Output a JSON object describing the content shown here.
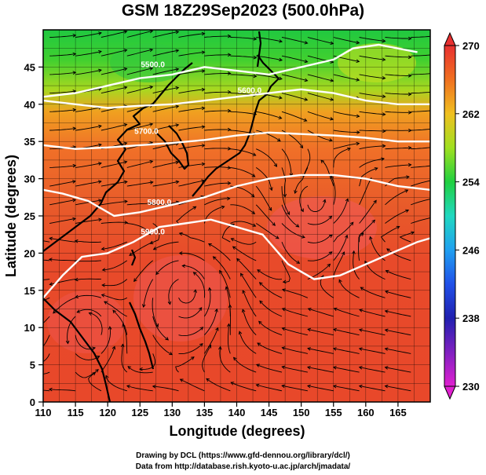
{
  "title": "GSM 18Z29Sep2023 (500.0hPa)",
  "credits": {
    "line1": "Drawing by DCL (https://www.gfd-dennou.org/library/dcl/)",
    "line2": "Data from http://database.rish.kyoto-u.ac.jp/arch/jmadata/"
  },
  "map": {
    "xlabel": "Longitude (degrees)",
    "ylabel": "Latitude  (degrees)",
    "lon_range": [
      110,
      170
    ],
    "lat_range": [
      0,
      50
    ],
    "lon_ticks": [
      "110",
      "115",
      "120",
      "125",
      "130",
      "135",
      "140",
      "145",
      "150",
      "155",
      "160",
      "165"
    ],
    "lat_ticks": [
      "0",
      "5",
      "10",
      "15",
      "20",
      "25",
      "30",
      "35",
      "40",
      "45"
    ],
    "contours": [
      {
        "label": "5500.0",
        "points": [
          [
            110,
            41
          ],
          [
            115,
            41.5
          ],
          [
            120,
            42.5
          ],
          [
            125,
            43.5
          ],
          [
            130,
            44
          ],
          [
            135,
            45
          ],
          [
            140,
            44.5
          ],
          [
            145,
            44
          ],
          [
            150,
            45
          ],
          [
            155,
            46
          ],
          [
            158,
            47.5
          ],
          [
            162,
            48
          ],
          [
            165,
            47.5
          ],
          [
            168,
            47
          ]
        ]
      },
      {
        "label": "5600.0",
        "points": [
          [
            110,
            40.5
          ],
          [
            115,
            40
          ],
          [
            120,
            39.5
          ],
          [
            125,
            39.8
          ],
          [
            130,
            40
          ],
          [
            135,
            40.5
          ],
          [
            140,
            41
          ],
          [
            145,
            41.5
          ],
          [
            150,
            42
          ],
          [
            155,
            41.5
          ],
          [
            160,
            40.5
          ],
          [
            165,
            40
          ],
          [
            170,
            40
          ]
        ]
      },
      {
        "label": "5700.0",
        "points": [
          [
            110,
            34.5
          ],
          [
            115,
            34
          ],
          [
            120,
            34.2
          ],
          [
            125,
            34.5
          ],
          [
            130,
            34.8
          ],
          [
            135,
            35.2
          ],
          [
            140,
            35.8
          ],
          [
            145,
            36.2
          ],
          [
            150,
            36
          ],
          [
            155,
            35.8
          ],
          [
            160,
            35.5
          ],
          [
            165,
            35
          ],
          [
            170,
            35
          ]
        ]
      },
      {
        "label": "5800.0",
        "points": [
          [
            110,
            28.5
          ],
          [
            113,
            28
          ],
          [
            117,
            27
          ],
          [
            121,
            25
          ],
          [
            125,
            25.5
          ],
          [
            130,
            26.5
          ],
          [
            135,
            27.5
          ],
          [
            140,
            29
          ],
          [
            145,
            30
          ],
          [
            150,
            30.5
          ],
          [
            155,
            30.5
          ],
          [
            160,
            30
          ],
          [
            165,
            29
          ],
          [
            170,
            28.5
          ]
        ]
      },
      {
        "label": "5900.0",
        "points": [
          [
            110,
            14
          ],
          [
            113,
            17
          ],
          [
            116,
            19.5
          ],
          [
            120,
            20
          ],
          [
            124,
            21.5
          ],
          [
            128,
            23.5
          ],
          [
            132,
            24
          ],
          [
            136,
            24.5
          ],
          [
            140,
            23.5
          ],
          [
            144,
            22.5
          ],
          [
            148,
            18.5
          ],
          [
            152,
            16.5
          ],
          [
            156,
            17
          ],
          [
            160,
            18.5
          ],
          [
            164,
            20
          ],
          [
            168,
            21.5
          ],
          [
            170,
            22
          ]
        ]
      }
    ],
    "contour_labels": [
      {
        "text": "5500.0",
        "lon": 127,
        "lat": 45
      },
      {
        "text": "5600.0",
        "lon": 142,
        "lat": 41.5
      },
      {
        "text": "5700.0",
        "lon": 126,
        "lat": 36
      },
      {
        "text": "5800.0",
        "lon": 128,
        "lat": 26.5
      },
      {
        "text": "5900.0",
        "lon": 127,
        "lat": 22.5
      }
    ]
  },
  "colorbar": {
    "ticks": [
      "230",
      "238",
      "246",
      "254",
      "262",
      "270"
    ],
    "tick_values": [
      230,
      238,
      246,
      254,
      262,
      270
    ],
    "range": [
      230,
      270
    ],
    "stops": [
      {
        "v": 230,
        "c": "#e020d0"
      },
      {
        "v": 234,
        "c": "#8020c0"
      },
      {
        "v": 238,
        "c": "#2020b0"
      },
      {
        "v": 242,
        "c": "#2050e8"
      },
      {
        "v": 246,
        "c": "#20a0f0"
      },
      {
        "v": 250,
        "c": "#20d8c0"
      },
      {
        "v": 254,
        "c": "#20d040"
      },
      {
        "v": 258,
        "c": "#a0e020"
      },
      {
        "v": 262,
        "c": "#f0c020"
      },
      {
        "v": 266,
        "c": "#f07020"
      },
      {
        "v": 270,
        "c": "#e83030"
      }
    ]
  },
  "colors": {
    "land": "#000000",
    "contour": "#ffffff",
    "streamline": "#000000"
  }
}
